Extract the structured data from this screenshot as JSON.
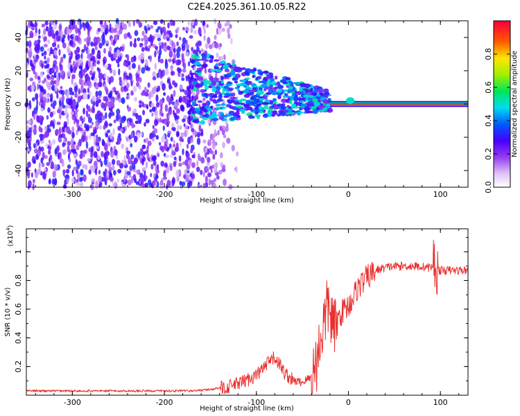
{
  "title": "C2E4.2025.361.10.05.R22",
  "chart_data": [
    {
      "type": "heatmap",
      "xlabel": "Height of straight line (km)",
      "ylabel": "Frequency (Hz)",
      "xlim": [
        -350,
        130
      ],
      "ylim": [
        -50,
        50
      ],
      "x_ticks": [
        -300,
        -200,
        -100,
        0,
        100
      ],
      "y_ticks": [
        -40,
        -20,
        0,
        20,
        40
      ],
      "colorbar": {
        "label": "Normalized spectral amplitude",
        "range": [
          0,
          1
        ],
        "ticks": [
          "0.0",
          "0.2",
          "0.4",
          "0.6",
          "0.8"
        ]
      }
    },
    {
      "type": "line",
      "xlabel": "Height of straight line (km)",
      "ylabel": "SNR (10 * v/v)",
      "y_multiplier": "(x10",
      "y_multiplier_exp": "4",
      "y_multiplier_close": ")",
      "xlim": [
        -350,
        130
      ],
      "ylim": [
        0,
        1.16
      ],
      "x_ticks": [
        -300,
        -200,
        -100,
        0,
        100
      ],
      "y_ticks": [
        "0.2",
        "0.4",
        "0.6",
        "0.8",
        "1"
      ],
      "color": "#e8302e",
      "series": [
        {
          "x": [
            -350,
            -300,
            -250,
            -200,
            -170,
            -150,
            -130,
            -115,
            -100,
            -90,
            -85,
            -80,
            -75,
            -70,
            -60,
            -50,
            -40,
            -35,
            -30,
            -25,
            -22,
            -20,
            -18,
            -15,
            -12,
            -10,
            -5,
            0,
            5,
            10,
            20,
            30,
            40,
            50,
            70,
            90,
            93,
            95,
            97,
            100,
            110,
            130
          ],
          "y": [
            0.03,
            0.03,
            0.03,
            0.03,
            0.03,
            0.04,
            0.06,
            0.09,
            0.14,
            0.2,
            0.24,
            0.26,
            0.22,
            0.16,
            0.1,
            0.09,
            0.13,
            0.22,
            0.4,
            0.55,
            0.62,
            0.58,
            0.52,
            0.45,
            0.5,
            0.55,
            0.6,
            0.62,
            0.68,
            0.75,
            0.82,
            0.87,
            0.89,
            0.9,
            0.9,
            0.89,
            0.92,
            0.88,
            0.87,
            0.87,
            0.87,
            0.87
          ]
        }
      ]
    }
  ]
}
